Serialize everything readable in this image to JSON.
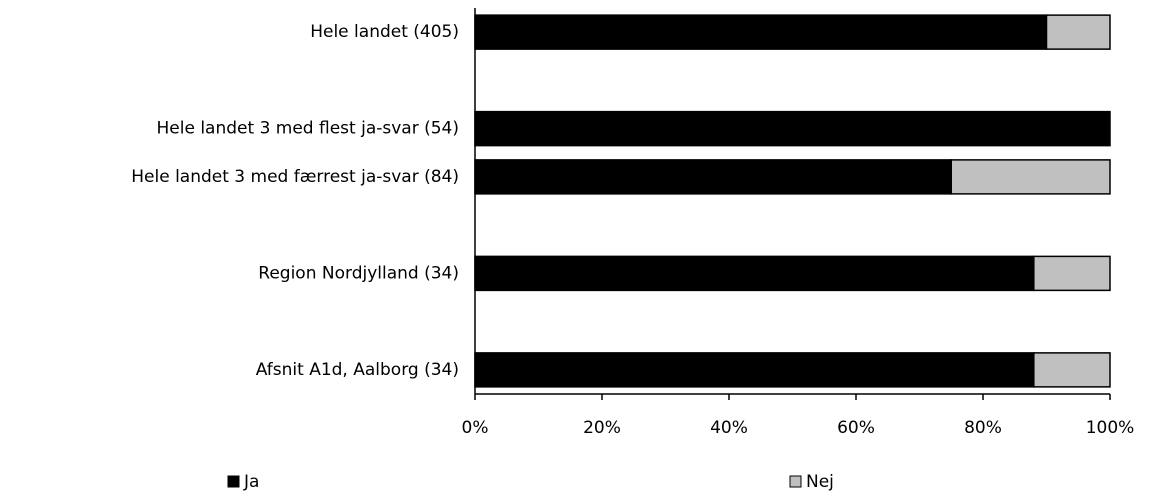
{
  "chart_data": {
    "type": "stacked-bar-horizontal",
    "categories": [
      "Hele landet  (405)",
      null,
      "Hele landet 3 med flest ja-svar (54)",
      "Hele landet 3 med færrest ja-svar (84)",
      null,
      "Region Nordjylland (34)",
      null,
      "Afsnit A1d, Aalborg (34)"
    ],
    "series": [
      {
        "name": "Ja",
        "color": "#000000",
        "values": [
          90,
          null,
          100,
          75,
          null,
          88,
          null,
          88
        ]
      },
      {
        "name": "Nej",
        "color": "#c0c0c0",
        "values": [
          10,
          null,
          0,
          25,
          null,
          12,
          null,
          12
        ]
      }
    ],
    "xlim": [
      0,
      100
    ],
    "xticks": [
      {
        "value": 0,
        "label": "0%"
      },
      {
        "value": 20,
        "label": "20%"
      },
      {
        "value": 40,
        "label": "40%"
      },
      {
        "value": 60,
        "label": "60%"
      },
      {
        "value": 80,
        "label": "80%"
      },
      {
        "value": 100,
        "label": "100%"
      }
    ],
    "legend": "bottom"
  }
}
